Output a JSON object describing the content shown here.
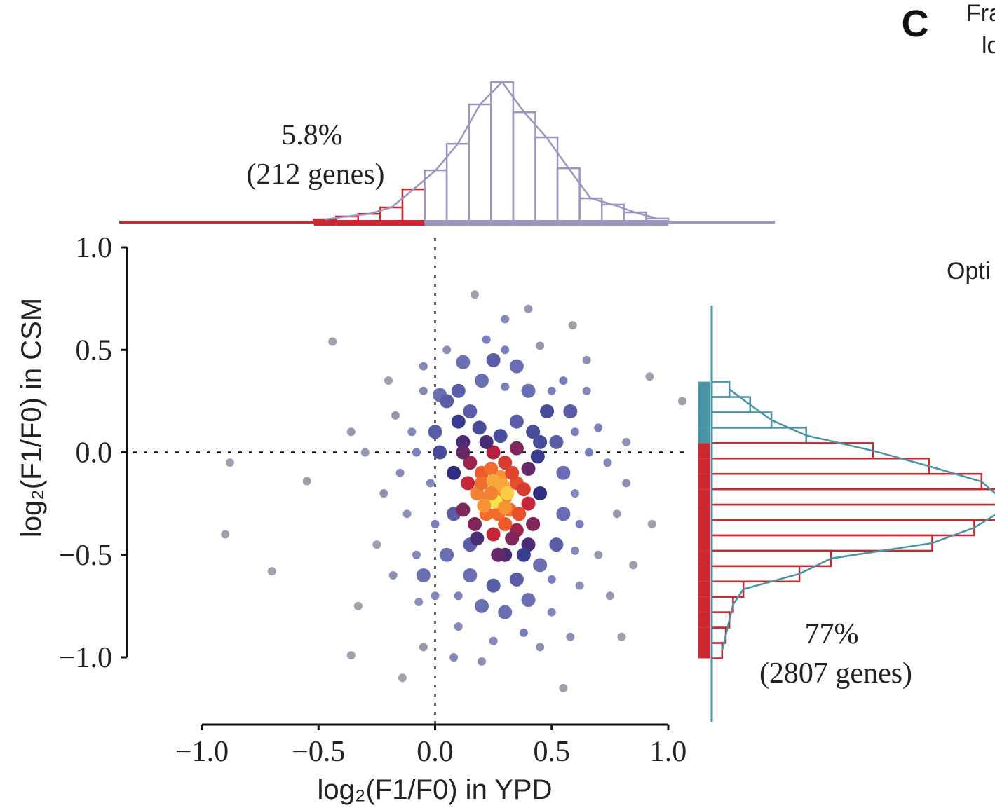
{
  "chart_data": {
    "type": "scatter",
    "xlabel": "log₂(F1/F0) in YPD",
    "ylabel": "log₂(F1/F0) in CSM",
    "panel_label": "C",
    "fragments": [
      "Fra",
      "lo",
      "Opti"
    ],
    "xlim": [
      -1,
      1
    ],
    "ylim": [
      -1,
      1
    ],
    "xticks": [
      {
        "value": -1,
        "label": "−1.0"
      },
      {
        "value": -0.5,
        "label": "−0.5"
      },
      {
        "value": 0,
        "label": "0.0"
      },
      {
        "value": 0.5,
        "label": "0.5"
      },
      {
        "value": 1,
        "label": "1.0"
      }
    ],
    "yticks": [
      {
        "value": -1,
        "label": "−1.0"
      },
      {
        "value": -0.5,
        "label": "−0.5"
      },
      {
        "value": 0,
        "label": "0.0"
      },
      {
        "value": 0.5,
        "label": "0.5"
      },
      {
        "value": 1,
        "label": "1.0"
      }
    ],
    "reference_lines": {
      "x": 0,
      "y": 0
    },
    "x": [
      -0.9,
      -0.7,
      -0.88,
      -0.55,
      -0.44,
      -0.36,
      -0.2,
      -0.33,
      -0.07,
      0.17,
      0.4,
      0.59,
      1.06,
      0.92,
      0.82,
      0.93,
      0.8,
      0.55,
      -0.14,
      -0.36,
      -0.17,
      -0.12,
      -0.25,
      -0.05,
      0.05,
      0.12,
      0.22,
      0.3,
      0.45,
      0.55,
      0.65,
      0.7,
      0.74,
      0.78,
      0.7,
      0.62,
      0.5,
      0.38,
      0.25,
      0.1,
      0.0,
      -0.08,
      -0.15,
      -0.1,
      0.02,
      0.6,
      0.66,
      0.45,
      0.2,
      -0.05,
      0.75,
      0.85,
      0.65,
      -0.22,
      -0.3,
      0.3,
      0.08,
      0.58,
      -0.18,
      0.82,
      0.0,
      0.05,
      0.1,
      0.2,
      0.3,
      0.4,
      0.48,
      0.52,
      0.55,
      0.55,
      0.52,
      0.45,
      0.35,
      0.25,
      0.15,
      0.05,
      0.0,
      -0.02,
      0.02,
      0.1,
      0.15,
      0.35,
      0.45,
      0.45,
      0.4,
      0.3,
      0.15,
      0.08,
      0.08,
      0.12,
      0.5,
      0.25,
      0.6,
      -0.05,
      0.2,
      0.4,
      0.6,
      -0.08,
      0.35,
      0.58,
      0.3,
      0.1,
      0.62,
      -0.05,
      0.5,
      0.27,
      0.2,
      0.3,
      0.35,
      0.32,
      0.22,
      0.18,
      0.25,
      0.35,
      0.4,
      0.4,
      0.35,
      0.25,
      0.17,
      0.15,
      0.22,
      0.28,
      0.3,
      0.23,
      0.27,
      0.33,
      0.2,
      0.24,
      0.3,
      0.38,
      0.14,
      0.28,
      0.36,
      0.18,
      0.42,
      0.26,
      0.29,
      0.25,
      0.31,
      0.21,
      0.33,
      0.12,
      0.42,
      0.19,
      0.44,
      0.27,
      0.12,
      0.38,
      0.24,
      0.3
    ],
    "values": [
      -0.4,
      -0.58,
      -0.05,
      -0.14,
      0.54,
      0.1,
      0.35,
      -0.75,
      -0.73,
      0.77,
      0.7,
      0.62,
      0.25,
      0.37,
      0.05,
      -0.35,
      -0.9,
      -1.15,
      -1.1,
      -0.99,
      0.18,
      -0.3,
      -0.45,
      0.42,
      0.5,
      0.44,
      0.55,
      0.5,
      0.52,
      0.35,
      0.3,
      0.12,
      -0.05,
      -0.3,
      -0.5,
      -0.65,
      -0.78,
      -0.88,
      -0.92,
      -0.85,
      -0.7,
      -0.5,
      -0.1,
      0.1,
      0.28,
      -0.2,
      0.0,
      -0.95,
      -1.02,
      -0.95,
      -0.7,
      -0.55,
      0.45,
      -0.2,
      0.0,
      0.65,
      -1.0,
      -0.9,
      -0.6,
      -0.15,
      0.1,
      0.25,
      0.3,
      0.35,
      0.32,
      0.3,
      0.2,
      0.05,
      -0.1,
      -0.3,
      -0.45,
      -0.55,
      -0.62,
      -0.65,
      -0.6,
      -0.5,
      -0.35,
      -0.15,
      0.0,
      0.15,
      0.2,
      0.15,
      0.05,
      -0.2,
      -0.45,
      -0.5,
      -0.45,
      -0.3,
      -0.1,
      0.05,
      0.3,
      0.45,
      0.1,
      -0.6,
      -0.75,
      -0.72,
      -0.48,
      0.0,
      0.42,
      0.2,
      -0.78,
      -0.7,
      -0.35,
      0.3,
      -0.62,
      -0.18,
      -0.1,
      -0.05,
      -0.15,
      -0.28,
      -0.3,
      -0.2,
      0.0,
      0.02,
      -0.08,
      -0.25,
      -0.38,
      -0.4,
      -0.35,
      -0.05,
      0.05,
      -0.12,
      -0.22,
      -0.22,
      -0.3,
      -0.1,
      -0.15,
      -0.08,
      -0.35,
      -0.18,
      -0.15,
      0.08,
      -0.3,
      -0.42,
      -0.35,
      -0.24,
      -0.16,
      -0.14,
      -0.2,
      -0.26,
      -0.42,
      0.0,
      0.1,
      0.12,
      -0.02,
      -0.5,
      -0.28,
      -0.5,
      -0.2,
      -0.27
    ],
    "top_histogram": {
      "bins": [
        -0.52,
        -0.425,
        -0.33,
        -0.235,
        -0.14,
        -0.045,
        0.05,
        0.145,
        0.24,
        0.335,
        0.43,
        0.525,
        0.62,
        0.715,
        0.81,
        0.905,
        1.0
      ],
      "counts": [
        10,
        24,
        37,
        68,
        156,
        248,
        377,
        568,
        677,
        530,
        408,
        258,
        112,
        82,
        44,
        14
      ],
      "colors": [
        "#c8282e",
        "#c8282e",
        "#c8282e",
        "#c8282e",
        "#c8282e",
        "#9b96c0",
        "#9b96c0",
        "#9b96c0",
        "#9b96c0",
        "#9b96c0",
        "#9b96c0",
        "#9b96c0",
        "#9b96c0",
        "#9b96c0",
        "#9b96c0",
        "#9b96c0"
      ],
      "annotation": [
        "5.8%",
        "(212 genes)"
      ]
    },
    "right_histogram": {
      "bins": [
        0.345,
        0.27,
        0.195,
        0.12,
        0.045,
        -0.03,
        -0.105,
        -0.18,
        -0.255,
        -0.33,
        -0.405,
        -0.48,
        -0.555,
        -0.63,
        -0.705,
        -0.78,
        -0.855,
        -0.93,
        -1.005
      ],
      "counts": [
        29,
        63,
        98,
        155,
        265,
        357,
        443,
        472,
        472,
        431,
        362,
        196,
        144,
        52,
        35,
        29,
        23,
        17
      ],
      "colors": [
        "#4a93a4",
        "#4a93a4",
        "#4a93a4",
        "#4a93a4",
        "#c8282e",
        "#c8282e",
        "#c8282e",
        "#c8282e",
        "#c8282e",
        "#c8282e",
        "#c8282e",
        "#c8282e",
        "#c8282e",
        "#c8282e",
        "#c8282e",
        "#c8282e",
        "#c8282e",
        "#c8282e"
      ],
      "annotation": [
        "77%",
        "(2807 genes)"
      ]
    }
  }
}
